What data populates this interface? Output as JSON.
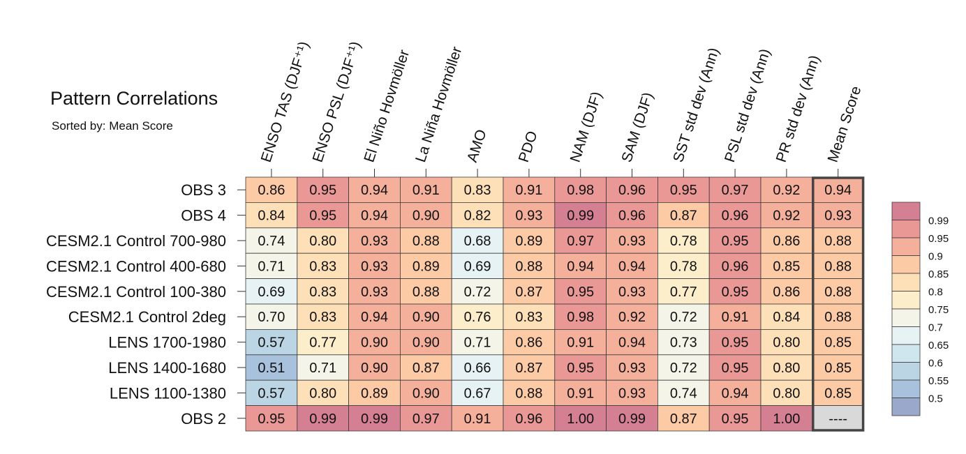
{
  "title": "Pattern Correlations",
  "subtitle": "Sorted by: Mean Score",
  "chart_data": {
    "type": "heatmap",
    "title": "Pattern Correlations",
    "subtitle": "Sorted by: Mean Score",
    "columns": [
      "ENSO TAS (DJF⁺¹)",
      "ENSO PSL (DJF⁺¹)",
      "El Niño Hovmöller",
      "La Niña Hovmöller",
      "AMO",
      "PDO",
      "NAM (DJF)",
      "SAM (DJF)",
      "SST std dev (Ann)",
      "PSL std dev (Ann)",
      "PR std dev (Ann)",
      "Mean Score"
    ],
    "rows": [
      "OBS 3",
      "OBS 4",
      "CESM2.1 Control 700-980",
      "CESM2.1 Control 400-680",
      "CESM2.1 Control 100-380",
      "CESM2.1 Control 2deg",
      "LENS 1700-1980",
      "LENS 1400-1680",
      "LENS 1100-1380",
      "OBS 2"
    ],
    "values": [
      [
        "0.86",
        "0.95",
        "0.94",
        "0.91",
        "0.83",
        "0.91",
        "0.98",
        "0.96",
        "0.95",
        "0.97",
        "0.92",
        "0.94"
      ],
      [
        "0.84",
        "0.95",
        "0.94",
        "0.90",
        "0.82",
        "0.93",
        "0.99",
        "0.96",
        "0.87",
        "0.96",
        "0.92",
        "0.93"
      ],
      [
        "0.74",
        "0.80",
        "0.93",
        "0.88",
        "0.68",
        "0.89",
        "0.97",
        "0.93",
        "0.78",
        "0.95",
        "0.86",
        "0.88"
      ],
      [
        "0.71",
        "0.83",
        "0.93",
        "0.89",
        "0.69",
        "0.88",
        "0.94",
        "0.94",
        "0.78",
        "0.96",
        "0.85",
        "0.88"
      ],
      [
        "0.69",
        "0.83",
        "0.93",
        "0.88",
        "0.72",
        "0.87",
        "0.95",
        "0.93",
        "0.77",
        "0.95",
        "0.86",
        "0.88"
      ],
      [
        "0.70",
        "0.83",
        "0.94",
        "0.90",
        "0.76",
        "0.83",
        "0.98",
        "0.92",
        "0.72",
        "0.91",
        "0.84",
        "0.88"
      ],
      [
        "0.57",
        "0.77",
        "0.90",
        "0.90",
        "0.71",
        "0.86",
        "0.91",
        "0.94",
        "0.73",
        "0.95",
        "0.80",
        "0.85"
      ],
      [
        "0.51",
        "0.71",
        "0.90",
        "0.87",
        "0.66",
        "0.87",
        "0.95",
        "0.93",
        "0.72",
        "0.95",
        "0.80",
        "0.85"
      ],
      [
        "0.57",
        "0.80",
        "0.89",
        "0.90",
        "0.67",
        "0.88",
        "0.91",
        "0.93",
        "0.74",
        "0.94",
        "0.80",
        "0.85"
      ],
      [
        "0.95",
        "0.99",
        "0.99",
        "0.97",
        "0.91",
        "0.96",
        "1.00",
        "0.99",
        "0.87",
        "0.95",
        "1.00",
        "----"
      ]
    ],
    "missing_text": "----",
    "missing_color": "#d9d9d9",
    "highlight_column": "Mean Score",
    "colorbar": {
      "position": "right",
      "labels": [
        "0.99",
        "0.95",
        "0.9",
        "0.85",
        "0.8",
        "0.75",
        "0.7",
        "0.65",
        "0.6",
        "0.55",
        "0.5"
      ],
      "thresholds": [
        0.5,
        0.55,
        0.6,
        0.65,
        0.7,
        0.75,
        0.8,
        0.85,
        0.9,
        0.95,
        0.99
      ],
      "colors": [
        "#9aa8cb",
        "#a8c1dc",
        "#bcd5e5",
        "#d0e6ef",
        "#e6f2f4",
        "#f5f4e8",
        "#fceecb",
        "#fde0b8",
        "#fccaa5",
        "#f5b09b",
        "#ea9896",
        "#d47f92"
      ]
    }
  }
}
